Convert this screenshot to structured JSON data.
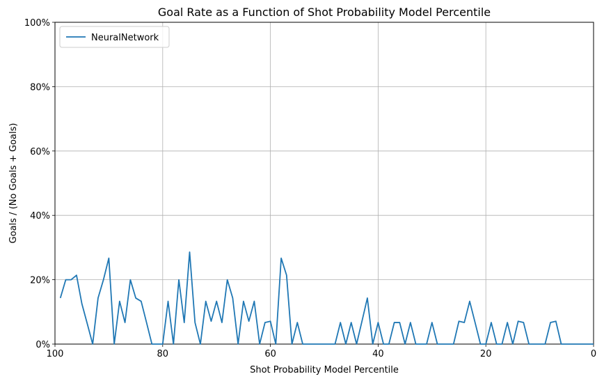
{
  "chart_data": {
    "type": "line",
    "title": "Goal Rate as a Function of Shot Probability Model Percentile",
    "xlabel": "Shot Probability Model Percentile",
    "ylabel": "Goals / (No Goals + Goals)",
    "xlim": [
      100,
      0
    ],
    "ylim": [
      0,
      100
    ],
    "x_ticks": [
      100,
      80,
      60,
      40,
      20,
      0
    ],
    "y_ticks": [
      0,
      20,
      40,
      60,
      80,
      100
    ],
    "y_tick_labels": [
      "0%",
      "20%",
      "40%",
      "60%",
      "80%",
      "100%"
    ],
    "grid": true,
    "legend_position": "top-left",
    "series": [
      {
        "name": "NeuralNetwork",
        "color": "#1f77b4",
        "x": [
          99,
          98,
          97,
          96,
          95,
          94,
          93,
          92,
          91,
          90,
          89,
          88,
          87,
          86,
          85,
          84,
          83,
          82,
          81,
          80,
          79,
          78,
          77,
          76,
          75,
          74,
          73,
          72,
          71,
          70,
          69,
          68,
          67,
          66,
          65,
          64,
          63,
          62,
          61,
          60,
          59,
          58,
          57,
          56,
          55,
          54,
          53,
          52,
          51,
          50,
          49,
          48,
          47,
          46,
          45,
          44,
          43,
          42,
          41,
          40,
          39,
          38,
          37,
          36,
          35,
          34,
          33,
          32,
          31,
          30,
          29,
          28,
          27,
          26,
          25,
          24,
          23,
          22,
          21,
          20,
          19,
          18,
          17,
          16,
          15,
          14,
          13,
          12,
          11,
          10,
          9,
          8,
          7,
          6,
          5,
          4,
          3,
          2,
          1,
          0
        ],
        "values": [
          14.3,
          20.0,
          20.0,
          21.4,
          12.5,
          6.3,
          0,
          14.3,
          20.0,
          26.7,
          0,
          13.3,
          6.7,
          20.0,
          14.3,
          13.3,
          6.7,
          0,
          0,
          0,
          13.3,
          0,
          20.0,
          6.7,
          28.6,
          6.7,
          0,
          13.3,
          7.1,
          13.3,
          6.7,
          20.0,
          14.3,
          0,
          13.3,
          7.1,
          13.3,
          0,
          6.7,
          7.1,
          0,
          26.7,
          21.4,
          0,
          6.7,
          0,
          0,
          0,
          0,
          0,
          0,
          0,
          6.7,
          0,
          6.7,
          0,
          7.1,
          14.3,
          0,
          6.7,
          0,
          0,
          6.7,
          6.7,
          0,
          6.7,
          0,
          0,
          0,
          6.7,
          0,
          0,
          0,
          0,
          7.1,
          6.7,
          13.3,
          6.7,
          0,
          0,
          6.7,
          0,
          0,
          6.7,
          0,
          7.1,
          6.7,
          0,
          0,
          0,
          0,
          6.7,
          7.1,
          0,
          0,
          0,
          0,
          0,
          0,
          0
        ]
      }
    ]
  }
}
